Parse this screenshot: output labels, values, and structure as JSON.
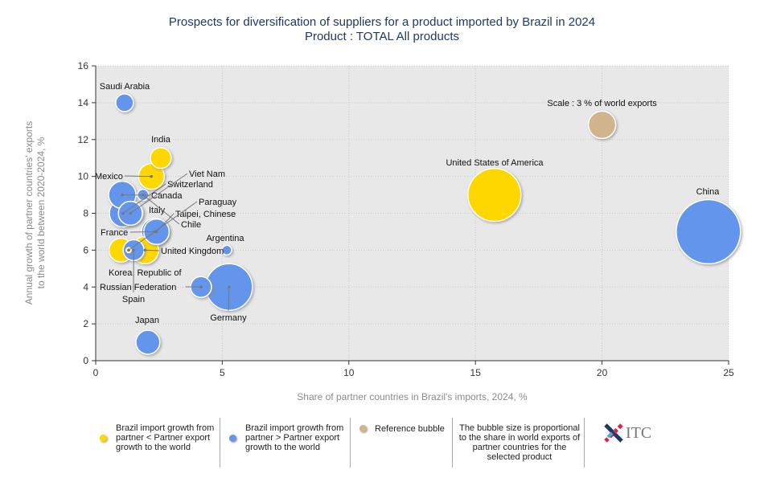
{
  "title": "Prospects for diversification of suppliers for a product imported by Brazil in 2024",
  "subtitle": "Product : TOTAL All products",
  "colors": {
    "below": "#FFD700",
    "above": "#6495ED",
    "reference": "#D2B48C",
    "plot_bg": "#E8E8E8"
  },
  "chart_data": {
    "type": "bubble",
    "title": "Prospects for diversification of suppliers for a product imported by Brazil in 2024",
    "xlabel": "Share of partner countries in Brazil's imports, 2024, %",
    "ylabel_lines": [
      "Annual growth of partner countries' exports",
      "to the world between 2020-2024, %"
    ],
    "xlim": [
      0,
      25
    ],
    "ylim": [
      0,
      16
    ],
    "xticks": [
      "0",
      "5",
      "10",
      "15",
      "20",
      "25"
    ],
    "yticks": [
      "0",
      "2",
      "4",
      "6",
      "8",
      "10",
      "12",
      "14",
      "16"
    ],
    "grid": true,
    "size_unit": "% of world exports",
    "points": [
      {
        "name": "China",
        "x": 24.2,
        "y": 7,
        "size": 16.6,
        "group": "above"
      },
      {
        "name": "United States of America",
        "x": 15.75,
        "y": 9,
        "size": 11.3,
        "group": "below"
      },
      {
        "name": "Germany",
        "x": 5.27,
        "y": 4,
        "size": 8.7,
        "group": "above"
      },
      {
        "name": "Switzerland",
        "x": 1.08,
        "y": 8,
        "size": 3.0,
        "group": "above"
      },
      {
        "name": "Canada",
        "x": 1.05,
        "y": 9,
        "size": 3.0,
        "group": "above"
      },
      {
        "name": "Mexico",
        "x": 2.2,
        "y": 10,
        "size": 2.66,
        "group": "below"
      },
      {
        "name": "France",
        "x": 2.35,
        "y": 7,
        "size": 3.0,
        "group": "above"
      },
      {
        "name": "Taipei, Chinese",
        "x": 2.4,
        "y": 7,
        "size": 2.6,
        "group": "above"
      },
      {
        "name": "United Kingdom",
        "x": 1.95,
        "y": 6,
        "size": 3.0,
        "group": "below"
      },
      {
        "name": "Korea, Republic of",
        "x": 1.0,
        "y": 6,
        "size": 2.3,
        "group": "below"
      },
      {
        "name": "Italy",
        "x": 1.4,
        "y": 8,
        "size": 2.3,
        "group": "above"
      },
      {
        "name": "Viet Nam",
        "x": 1.37,
        "y": 8,
        "size": 2.3,
        "group": "above"
      },
      {
        "name": "Japan",
        "x": 2.06,
        "y": 1,
        "size": 2.3,
        "group": "above"
      },
      {
        "name": "Spain",
        "x": 1.5,
        "y": 6,
        "size": 1.75,
        "group": "above"
      },
      {
        "name": "India",
        "x": 2.57,
        "y": 11,
        "size": 1.75,
        "group": "below"
      },
      {
        "name": "Russian Federation",
        "x": 4.16,
        "y": 4,
        "size": 1.75,
        "group": "above"
      },
      {
        "name": "Saudi Arabia",
        "x": 1.14,
        "y": 14,
        "size": 1.26,
        "group": "above"
      },
      {
        "name": "Chile",
        "x": 1.87,
        "y": 9,
        "size": 0.5,
        "group": "above"
      },
      {
        "name": "Argentina",
        "x": 5.18,
        "y": 6,
        "size": 0.37,
        "group": "above"
      },
      {
        "name": "Paraguay",
        "x": 1.3,
        "y": 6,
        "size": 0.1,
        "group": "below"
      }
    ],
    "reference": {
      "label": "Scale : 3 % of world exports",
      "x": 20,
      "y": 12.8,
      "size": 3
    }
  },
  "legend": {
    "below": "Brazil import growth from partner < Partner export growth to the world",
    "above": "Brazil import growth from partner > Partner export growth to the world",
    "reference": "Reference bubble",
    "note": "The bubble size is proportional to the share in world exports of partner countries for the selected product",
    "logo": "ITC"
  }
}
